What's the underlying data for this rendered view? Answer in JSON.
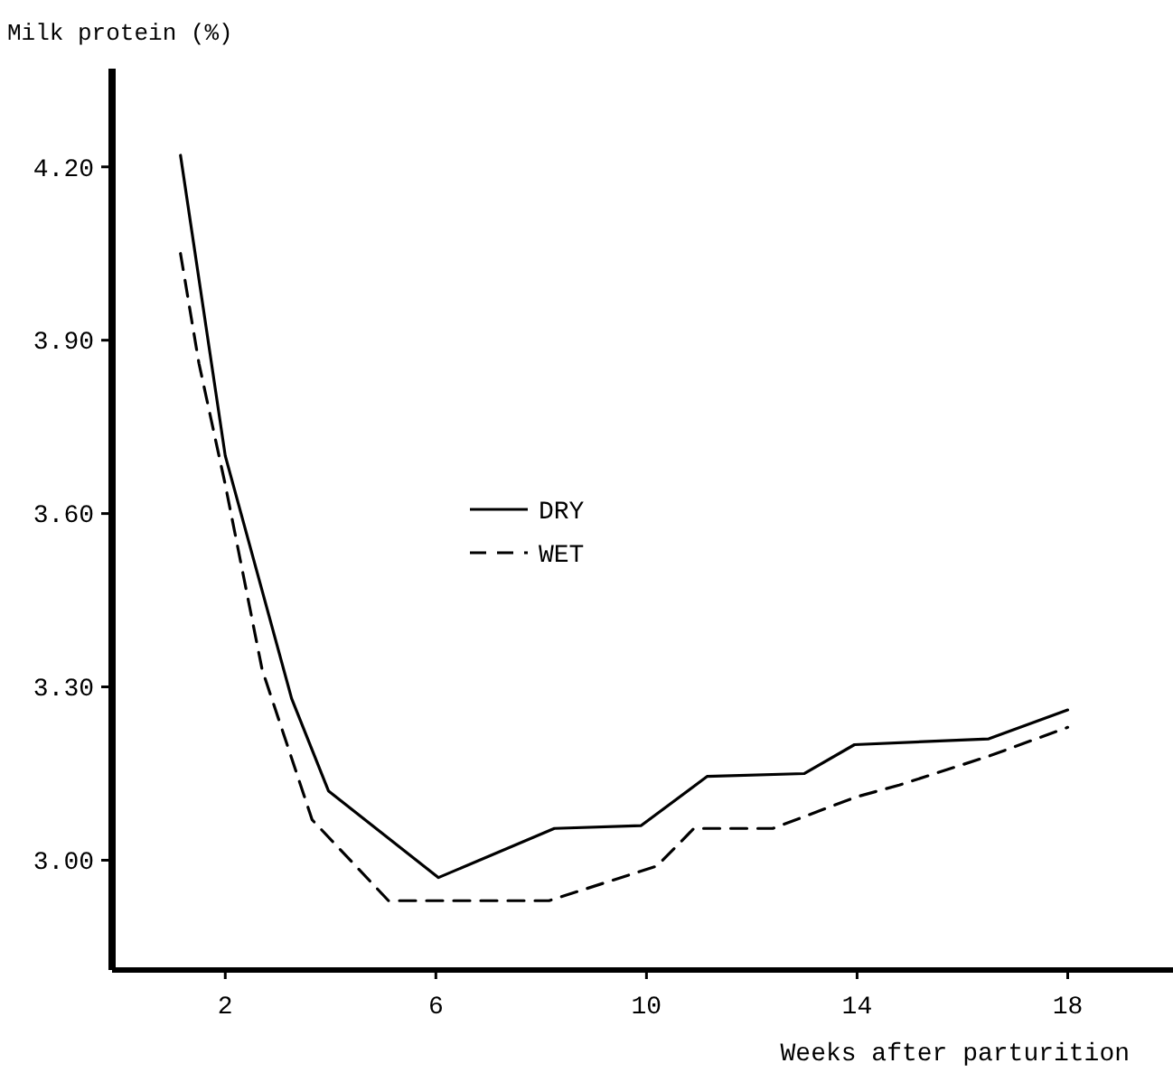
{
  "chart_data": {
    "type": "line",
    "xlabel": "Weeks after parturition",
    "ylabel": "Milk protein (%)",
    "xlim": [
      -0.15,
      20
    ],
    "xticks": [
      2,
      6,
      10,
      14,
      18
    ],
    "ylim": [
      2.81,
      4.37
    ],
    "yticks": [
      {
        "value": 3,
        "label": "3.00"
      },
      {
        "value": 3.3,
        "label": "3.30"
      },
      {
        "value": 3.6,
        "label": "3.60"
      },
      {
        "value": 3.9,
        "label": "3.90"
      },
      {
        "value": 4.2,
        "label": "4.20"
      }
    ],
    "grid": false,
    "legend": "center",
    "marker": "none",
    "series": [
      {
        "name": "DRY",
        "color": "#000000",
        "line_style": "solid",
        "x": [
          1.15,
          2,
          3.26,
          3.96,
          6.05,
          8.25,
          9.9,
          11.15,
          13,
          13.95,
          16.5,
          18
        ],
        "values": [
          4.22,
          3.7,
          3.28,
          3.12,
          2.97,
          3.055,
          3.06,
          3.145,
          3.15,
          3.2,
          3.21,
          3.26
        ]
      },
      {
        "name": "WET",
        "color": "#000000",
        "line_style": "dashed",
        "x": [
          1.15,
          1.5,
          2,
          2.7,
          3.65,
          5.1,
          8.15,
          10.2,
          10.9,
          12.4,
          14,
          14.8,
          16.5,
          18
        ],
        "values": [
          4.05,
          3.86,
          3.65,
          3.33,
          3.07,
          2.93,
          2.93,
          2.99,
          3.055,
          3.055,
          3.11,
          3.13,
          3.18,
          3.23
        ]
      }
    ]
  }
}
